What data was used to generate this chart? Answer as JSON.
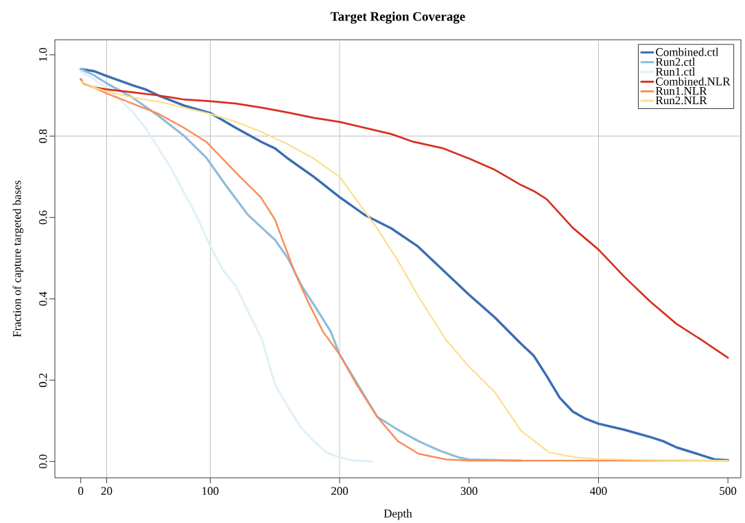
{
  "chart_data": {
    "type": "line",
    "title": "Target Region Coverage",
    "xlabel": "Depth",
    "ylabel": "Fraction of capture targeted bases",
    "xlim": [
      -20,
      510
    ],
    "ylim": [
      -0.04,
      1.037
    ],
    "xticks": [
      0,
      20,
      100,
      200,
      300,
      400,
      500
    ],
    "yticks": [
      {
        "value": 0,
        "label": "0.0"
      },
      {
        "value": 0.2,
        "label": "0.2"
      },
      {
        "value": 0.4,
        "label": "0.4"
      },
      {
        "value": 0.6,
        "label": "0.6"
      },
      {
        "value": 0.8,
        "label": "0.8"
      },
      {
        "value": 1,
        "label": "1.0"
      }
    ],
    "legend": "top right",
    "grid": false,
    "marker": "none",
    "line_style": "solid",
    "ref_lines": [
      {
        "axis": "x",
        "value": 20,
        "color": "#bebebe"
      },
      {
        "axis": "x",
        "value": 100,
        "color": "#bebebe"
      },
      {
        "axis": "x",
        "value": 200,
        "color": "#bebebe"
      },
      {
        "axis": "x",
        "value": 400,
        "color": "#bebebe"
      },
      {
        "axis": "y",
        "value": 0.8,
        "color": "#bebebe"
      }
    ],
    "series": [
      {
        "name": "Combined.ctl",
        "color": "#3b6db3",
        "x": [
          0,
          10,
          20,
          40,
          50,
          60,
          80,
          100,
          120,
          140,
          150,
          160,
          180,
          200,
          220,
          240,
          260,
          280,
          300,
          320,
          340,
          350,
          360,
          370,
          380,
          390,
          400,
          420,
          440,
          450,
          460,
          480,
          490,
          500
        ],
        "values": [
          0.965,
          0.96,
          0.948,
          0.925,
          0.915,
          0.9,
          0.875,
          0.857,
          0.82,
          0.785,
          0.77,
          0.745,
          0.7,
          0.65,
          0.605,
          0.573,
          0.53,
          0.47,
          0.41,
          0.354,
          0.29,
          0.26,
          0.21,
          0.157,
          0.123,
          0.105,
          0.093,
          0.078,
          0.06,
          0.05,
          0.035,
          0.015,
          0.005,
          0.003
        ]
      },
      {
        "name": "Run2.ctl",
        "color": "#8fbcdb",
        "x": [
          0,
          10,
          20,
          40,
          60,
          80,
          97,
          113,
          129,
          150,
          160,
          171,
          182,
          193,
          200,
          229,
          245,
          261,
          277,
          293,
          300,
          340
        ],
        "values": [
          0.965,
          0.95,
          0.93,
          0.895,
          0.85,
          0.8,
          0.747,
          0.675,
          0.607,
          0.545,
          0.5,
          0.43,
          0.376,
          0.32,
          0.263,
          0.11,
          0.078,
          0.05,
          0.027,
          0.009,
          0.005,
          0.002
        ]
      },
      {
        "name": "Run1.ctl",
        "color": "#dff0f7",
        "x": [
          0,
          20,
          40,
          50,
          60,
          70,
          80,
          90,
          100,
          110,
          120,
          130,
          140,
          150,
          160,
          170,
          180,
          190,
          200,
          210,
          225
        ],
        "values": [
          0.96,
          0.92,
          0.86,
          0.82,
          0.77,
          0.72,
          0.66,
          0.6,
          0.53,
          0.47,
          0.43,
          0.364,
          0.3,
          0.19,
          0.135,
          0.084,
          0.05,
          0.022,
          0.01,
          0.003,
          0.0
        ]
      },
      {
        "name": "Combined.NLR",
        "color": "#d7301f",
        "x": [
          0,
          2,
          10,
          20,
          40,
          60,
          80,
          100,
          120,
          140,
          160,
          180,
          200,
          220,
          240,
          256,
          280,
          300,
          320,
          340,
          350,
          360,
          380,
          400,
          420,
          440,
          460,
          480,
          500
        ],
        "values": [
          0.94,
          0.93,
          0.92,
          0.915,
          0.908,
          0.9,
          0.89,
          0.886,
          0.88,
          0.87,
          0.858,
          0.845,
          0.835,
          0.82,
          0.805,
          0.787,
          0.77,
          0.745,
          0.717,
          0.68,
          0.665,
          0.645,
          0.575,
          0.521,
          0.454,
          0.393,
          0.339,
          0.298,
          0.255
        ]
      },
      {
        "name": "Run1.NLR",
        "color": "#f88d59",
        "x": [
          0,
          2,
          10,
          20,
          40,
          60,
          80,
          97,
          123,
          139,
          150,
          166,
          176,
          187,
          200,
          213,
          229,
          245,
          261,
          282,
          300,
          500
        ],
        "values": [
          0.94,
          0.93,
          0.92,
          0.905,
          0.88,
          0.855,
          0.82,
          0.786,
          0.7,
          0.65,
          0.595,
          0.46,
          0.39,
          0.32,
          0.263,
          0.19,
          0.11,
          0.05,
          0.019,
          0.005,
          0.002,
          0.002
        ]
      },
      {
        "name": "Run2.NLR",
        "color": "#fbdf8c",
        "x": [
          0,
          10,
          20,
          40,
          60,
          80,
          100,
          120,
          140,
          160,
          180,
          200,
          229,
          245,
          261,
          282,
          298,
          320,
          340,
          362,
          383,
          400,
          450,
          500
        ],
        "values": [
          0.935,
          0.92,
          0.91,
          0.895,
          0.885,
          0.87,
          0.855,
          0.835,
          0.81,
          0.78,
          0.745,
          0.7,
          0.573,
          0.494,
          0.405,
          0.3,
          0.24,
          0.17,
          0.076,
          0.022,
          0.01,
          0.006,
          0.003,
          0.002
        ]
      }
    ]
  }
}
